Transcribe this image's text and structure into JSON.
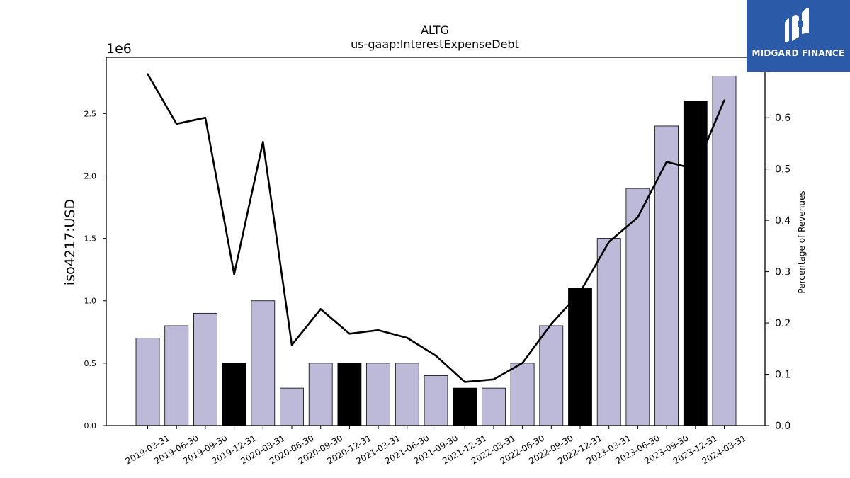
{
  "chart_data": {
    "type": "bar",
    "title": "ALTG",
    "subtitle": "us-gaap:InterestExpenseDebt",
    "ylabel": "iso4217:USD",
    "y2label": "Percentage of Revenues",
    "y_offset_label": "1e6",
    "ylim": [
      0,
      2950000
    ],
    "y2lim": [
      0,
      0.7176
    ],
    "yticks": [
      0,
      500000,
      1000000,
      1500000,
      2000000,
      2500000
    ],
    "ytick_labels": [
      "0.0",
      "0.5",
      "1.0",
      "1.5",
      "2.0",
      "2.5"
    ],
    "y2ticks": [
      0,
      0.1,
      0.2,
      0.3,
      0.4,
      0.5,
      0.6
    ],
    "y2tick_labels": [
      "0.0",
      "0.1",
      "0.2",
      "0.3",
      "0.4",
      "0.5",
      "0.6"
    ],
    "categories": [
      "2019-03-31",
      "2019-06-30",
      "2019-09-30",
      "2019-12-31",
      "2020-03-31",
      "2020-06-30",
      "2020-09-30",
      "2020-12-31",
      "2021-03-31",
      "2021-06-30",
      "2021-09-30",
      "2021-12-31",
      "2022-03-31",
      "2022-06-30",
      "2022-09-30",
      "2022-12-31",
      "2023-03-31",
      "2023-06-30",
      "2023-09-30",
      "2023-12-31",
      "2024-03-31"
    ],
    "series": [
      {
        "type": "bar",
        "axis": "left",
        "values": [
          700000,
          800000,
          900000,
          500000,
          1000000,
          300000,
          500000,
          500000,
          500000,
          500000,
          400000,
          300000,
          300000,
          500000,
          800000,
          1100000,
          1500000,
          1900000,
          2400000,
          2600000,
          2800000
        ],
        "highlight": [
          false,
          false,
          false,
          true,
          false,
          false,
          false,
          true,
          false,
          false,
          false,
          true,
          false,
          false,
          false,
          true,
          false,
          false,
          false,
          true,
          false
        ]
      },
      {
        "type": "line",
        "axis": "right",
        "values": [
          0.685,
          0.588,
          0.6,
          0.295,
          0.553,
          0.157,
          0.227,
          0.179,
          0.186,
          0.171,
          0.136,
          0.085,
          0.09,
          0.122,
          0.198,
          0.26,
          0.358,
          0.406,
          0.514,
          0.5,
          0.634
        ]
      }
    ],
    "colors": {
      "bar": "#bcb9d9",
      "bar_highlight": "#000000",
      "line": "#000000",
      "axis": "#000000"
    },
    "grid": false
  },
  "logo": {
    "text": "MIDGARD FINANCE",
    "background": "#2b5aa8"
  }
}
